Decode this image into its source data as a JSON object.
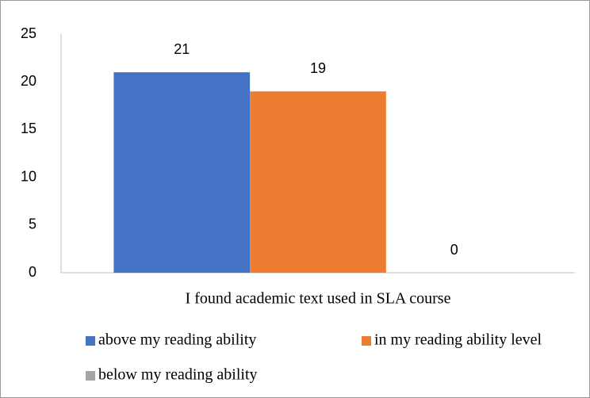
{
  "chart_data": {
    "type": "bar",
    "categories": [
      "I found academic text used in SLA course"
    ],
    "series": [
      {
        "name": "above my reading ability",
        "color": "#4472c4",
        "values": [
          21
        ]
      },
      {
        "name": "in my reading ability level",
        "color": "#ed7d31",
        "values": [
          19
        ]
      },
      {
        "name": "below my reading ability",
        "color": "#a5a5a5",
        "values": [
          0
        ]
      }
    ],
    "ylim": [
      0,
      25
    ],
    "yticks": [
      0,
      5,
      10,
      15,
      20,
      25
    ],
    "grid": false,
    "legend": "bottom"
  }
}
